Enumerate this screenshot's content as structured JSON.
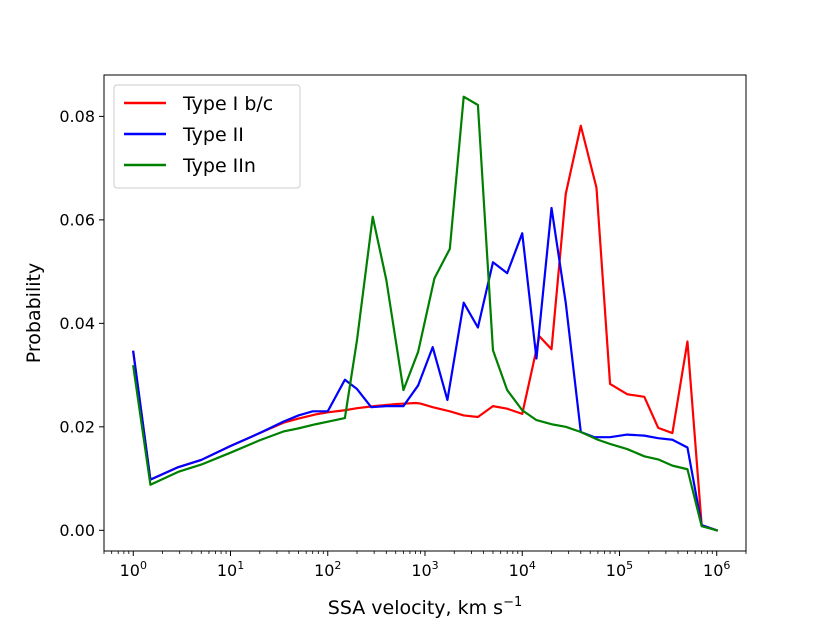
{
  "chart_data": {
    "type": "line",
    "title": "",
    "xlabel": "SSA velocity, km s",
    "xlabel_superscript": "−1",
    "ylabel": "Probability",
    "xscale": "log",
    "xlim": [
      0.5,
      2000000
    ],
    "ylim": [
      -0.004,
      0.088
    ],
    "x_ticks": [
      {
        "value": 1,
        "base": "10",
        "exp": "0"
      },
      {
        "value": 10,
        "base": "10",
        "exp": "1"
      },
      {
        "value": 100,
        "base": "10",
        "exp": "2"
      },
      {
        "value": 1000,
        "base": "10",
        "exp": "3"
      },
      {
        "value": 10000,
        "base": "10",
        "exp": "4"
      },
      {
        "value": 100000,
        "base": "10",
        "exp": "5"
      },
      {
        "value": 1000000,
        "base": "10",
        "exp": "6"
      }
    ],
    "y_ticks": [
      {
        "value": 0.0,
        "label": "0.00"
      },
      {
        "value": 0.02,
        "label": "0.02"
      },
      {
        "value": 0.04,
        "label": "0.04"
      },
      {
        "value": 0.06,
        "label": "0.06"
      },
      {
        "value": 0.08,
        "label": "0.08"
      }
    ],
    "grid": false,
    "legend_position": "top-left",
    "series": [
      {
        "name": "Type I b/c",
        "color": "#ff0000",
        "points": [
          [
            1,
            0.0345
          ],
          [
            1.5,
            0.0098
          ],
          [
            2.9,
            0.0122
          ],
          [
            5,
            0.0136
          ],
          [
            10,
            0.0163
          ],
          [
            20,
            0.0188
          ],
          [
            35,
            0.0208
          ],
          [
            50,
            0.0216
          ],
          [
            75,
            0.0224
          ],
          [
            100,
            0.0228
          ],
          [
            150,
            0.0232
          ],
          [
            200,
            0.0236
          ],
          [
            300,
            0.024
          ],
          [
            500,
            0.0244
          ],
          [
            800,
            0.0246
          ],
          [
            900,
            0.0245
          ],
          [
            1200,
            0.0238
          ],
          [
            1800,
            0.023
          ],
          [
            2500,
            0.0222
          ],
          [
            3500,
            0.0219
          ],
          [
            5000,
            0.024
          ],
          [
            7000,
            0.0235
          ],
          [
            10000,
            0.0225
          ],
          [
            15000,
            0.0375
          ],
          [
            20000,
            0.035
          ],
          [
            28000,
            0.065
          ],
          [
            40000,
            0.0782
          ],
          [
            58000,
            0.0662
          ],
          [
            80000,
            0.0283
          ],
          [
            120000,
            0.0263
          ],
          [
            180000,
            0.0258
          ],
          [
            250000,
            0.0198
          ],
          [
            350000,
            0.0188
          ],
          [
            500000,
            0.0365
          ],
          [
            700000,
            0.001
          ],
          [
            1000000,
            0.0
          ]
        ]
      },
      {
        "name": "Type II",
        "color": "#0000ff",
        "points": [
          [
            1,
            0.0345
          ],
          [
            1.5,
            0.0098
          ],
          [
            2.9,
            0.0122
          ],
          [
            5,
            0.0136
          ],
          [
            10,
            0.0163
          ],
          [
            20,
            0.0188
          ],
          [
            35,
            0.021
          ],
          [
            50,
            0.0222
          ],
          [
            70,
            0.023
          ],
          [
            100,
            0.023
          ],
          [
            150,
            0.0291
          ],
          [
            200,
            0.0273
          ],
          [
            280,
            0.0238
          ],
          [
            400,
            0.024
          ],
          [
            600,
            0.024
          ],
          [
            850,
            0.028
          ],
          [
            1200,
            0.0354
          ],
          [
            1700,
            0.0252
          ],
          [
            2500,
            0.044
          ],
          [
            3500,
            0.0392
          ],
          [
            5000,
            0.0518
          ],
          [
            7000,
            0.0497
          ],
          [
            10000,
            0.0574
          ],
          [
            14000,
            0.0332
          ],
          [
            20000,
            0.0623
          ],
          [
            28000,
            0.044
          ],
          [
            40000,
            0.019
          ],
          [
            55000,
            0.018
          ],
          [
            80000,
            0.018
          ],
          [
            120000,
            0.0185
          ],
          [
            180000,
            0.0183
          ],
          [
            250000,
            0.0178
          ],
          [
            350000,
            0.0175
          ],
          [
            500000,
            0.016
          ],
          [
            700000,
            0.001
          ],
          [
            1000000,
            0.0
          ]
        ]
      },
      {
        "name": "Type IIn",
        "color": "#008000",
        "points": [
          [
            1,
            0.0317
          ],
          [
            1.5,
            0.0088
          ],
          [
            2.9,
            0.0113
          ],
          [
            5,
            0.0127
          ],
          [
            10,
            0.015
          ],
          [
            20,
            0.0174
          ],
          [
            35,
            0.0191
          ],
          [
            50,
            0.0197
          ],
          [
            75,
            0.0205
          ],
          [
            100,
            0.021
          ],
          [
            150,
            0.0217
          ],
          [
            200,
            0.0368
          ],
          [
            290,
            0.0606
          ],
          [
            400,
            0.0484
          ],
          [
            600,
            0.0271
          ],
          [
            850,
            0.0345
          ],
          [
            1250,
            0.0487
          ],
          [
            1800,
            0.0544
          ],
          [
            2500,
            0.0838
          ],
          [
            3500,
            0.0822
          ],
          [
            5000,
            0.0348
          ],
          [
            7000,
            0.0271
          ],
          [
            10000,
            0.0232
          ],
          [
            14000,
            0.0213
          ],
          [
            20000,
            0.0205
          ],
          [
            28000,
            0.02
          ],
          [
            40000,
            0.019
          ],
          [
            60000,
            0.0175
          ],
          [
            80000,
            0.0167
          ],
          [
            120000,
            0.0157
          ],
          [
            180000,
            0.0143
          ],
          [
            250000,
            0.0137
          ],
          [
            350000,
            0.0125
          ],
          [
            500000,
            0.0118
          ],
          [
            700000,
            0.0008
          ],
          [
            1000000,
            0.0
          ]
        ]
      }
    ]
  }
}
